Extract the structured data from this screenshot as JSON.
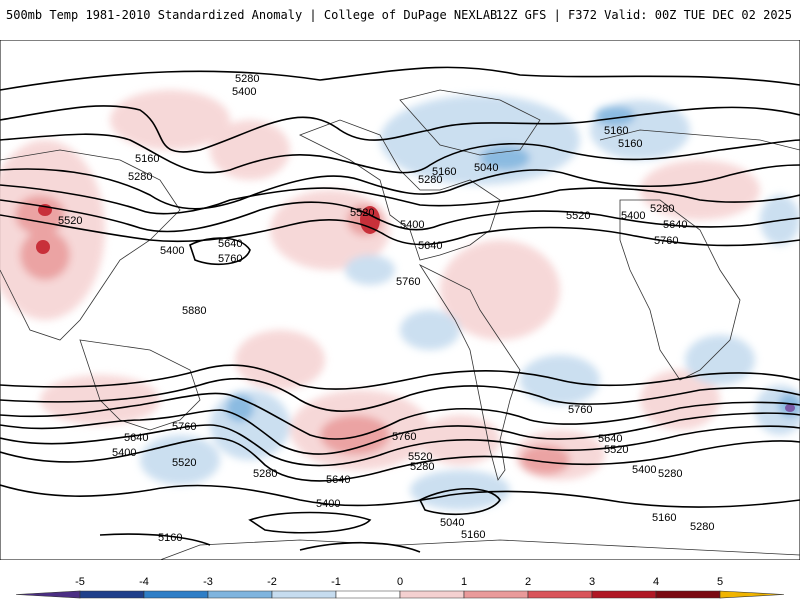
{
  "header": {
    "title_left": "500mb Temp 1981-2010 Standardized Anomaly | College of DuPage NEXLAB",
    "title_right": "12Z GFS | F372 Valid: 00Z TUE DEC 02 2025"
  },
  "contours": {
    "labels": [
      "5280",
      "5400",
      "5160",
      "5280",
      "5520",
      "5400",
      "5640",
      "5760",
      "5880",
      "5520",
      "5400",
      "5640",
      "5760",
      "5160",
      "5040",
      "5160",
      "5280",
      "5520",
      "5400",
      "5640",
      "5760",
      "5280",
      "5160",
      "5760",
      "5640",
      "5400",
      "5520",
      "5280",
      "5640",
      "5400",
      "5520",
      "5280",
      "5760",
      "5040",
      "5160",
      "5160",
      "5760",
      "5640",
      "5520",
      "5400",
      "5280",
      "5160",
      "5280"
    ]
  },
  "colorbar": {
    "ticks": [
      "-5",
      "-4",
      "-3",
      "-2",
      "-1",
      "0",
      "1",
      "2",
      "3",
      "4",
      "5"
    ],
    "colors": [
      "#4b2e83",
      "#1f3f8a",
      "#2f7ec6",
      "#7fb4de",
      "#c6dcef",
      "#ffffff",
      "#f4d0d0",
      "#e99a9a",
      "#d9555b",
      "#b01825",
      "#7a0a12",
      "#f0b400"
    ]
  }
}
